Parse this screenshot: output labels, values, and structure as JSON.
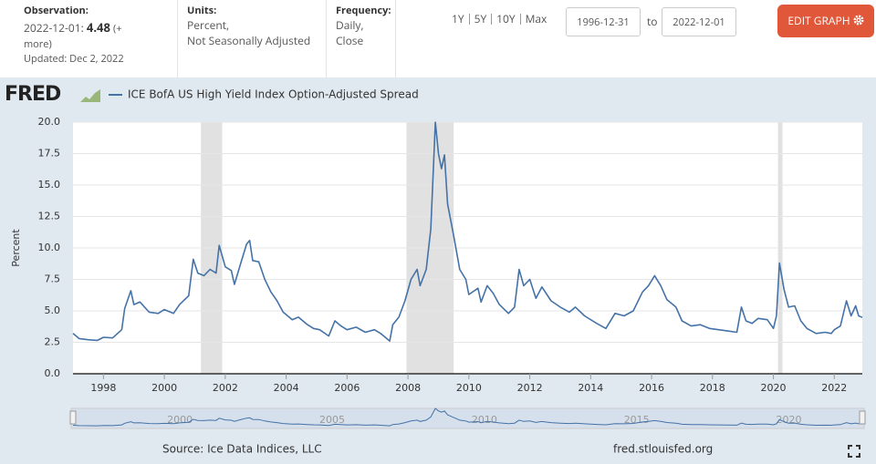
{
  "header": {
    "observation_label": "Observation:",
    "observation_date": "2022-12-01:",
    "observation_value": "4.48",
    "more": "(+ more)",
    "updated": "Updated: Dec 2, 2022",
    "units_label": "Units:",
    "units": [
      "Percent,",
      "Not Seasonally Adjusted"
    ],
    "frequency_label": "Frequency:",
    "frequency": [
      "Daily,",
      "Close"
    ],
    "ranges": [
      "1Y",
      "5Y",
      "10Y",
      "Max"
    ],
    "start_date": "1996-12-31",
    "to": "to",
    "end_date": "2022-12-01",
    "edit_button": "EDIT GRAPH"
  },
  "logo": "FRED",
  "chart_data": {
    "type": "line",
    "y_label": "Percent",
    "x": [
      1997.0,
      1997.2,
      1997.5,
      1997.8,
      1998.0,
      1998.3,
      1998.6,
      1998.7,
      1998.9,
      1999.0,
      1999.2,
      1999.5,
      1999.8,
      2000.0,
      2000.3,
      2000.5,
      2000.8,
      2000.95,
      2001.1,
      2001.3,
      2001.5,
      2001.7,
      2001.8,
      2002.0,
      2002.2,
      2002.3,
      2002.5,
      2002.7,
      2002.8,
      2002.9,
      2003.1,
      2003.3,
      2003.5,
      2003.7,
      2003.9,
      2004.2,
      2004.4,
      2004.7,
      2004.9,
      2005.1,
      2005.4,
      2005.6,
      2005.8,
      2006.0,
      2006.3,
      2006.6,
      2006.9,
      2007.1,
      2007.4,
      2007.5,
      2007.7,
      2007.9,
      2008.1,
      2008.3,
      2008.4,
      2008.6,
      2008.75,
      2008.9,
      2009.0,
      2009.1,
      2009.2,
      2009.3,
      2009.5,
      2009.7,
      2009.9,
      2010.0,
      2010.3,
      2010.4,
      2010.6,
      2010.8,
      2011.0,
      2011.3,
      2011.5,
      2011.65,
      2011.8,
      2012.0,
      2012.2,
      2012.4,
      2012.7,
      2013.0,
      2013.3,
      2013.5,
      2013.8,
      2014.2,
      2014.5,
      2014.8,
      2015.1,
      2015.4,
      2015.7,
      2015.9,
      2016.1,
      2016.3,
      2016.5,
      2016.8,
      2017.0,
      2017.3,
      2017.6,
      2017.9,
      2018.2,
      2018.5,
      2018.8,
      2018.95,
      2019.1,
      2019.3,
      2019.5,
      2019.8,
      2020.0,
      2020.1,
      2020.2,
      2020.35,
      2020.5,
      2020.7,
      2020.9,
      2021.1,
      2021.4,
      2021.7,
      2021.9,
      2022.0,
      2022.2,
      2022.4,
      2022.55,
      2022.7,
      2022.8,
      2022.92
    ],
    "series": [
      {
        "name": "ICE BofA US High Yield Index Option-Adjusted Spread",
        "color": "#4572a7",
        "values": [
          3.2,
          2.8,
          2.7,
          2.65,
          2.9,
          2.85,
          3.5,
          5.2,
          6.6,
          5.5,
          5.7,
          4.9,
          4.8,
          5.1,
          4.8,
          5.5,
          6.2,
          9.1,
          8.0,
          7.8,
          8.3,
          8.0,
          10.2,
          8.5,
          8.2,
          7.1,
          8.7,
          10.3,
          10.6,
          9.0,
          8.9,
          7.5,
          6.5,
          5.8,
          4.9,
          4.3,
          4.5,
          3.9,
          3.6,
          3.5,
          3.0,
          4.2,
          3.8,
          3.5,
          3.7,
          3.3,
          3.5,
          3.2,
          2.6,
          3.9,
          4.5,
          5.8,
          7.5,
          8.3,
          7.0,
          8.3,
          11.5,
          20.0,
          17.5,
          16.3,
          17.4,
          13.5,
          11.0,
          8.3,
          7.5,
          6.3,
          6.8,
          5.7,
          7.0,
          6.4,
          5.5,
          4.8,
          5.3,
          8.3,
          7.0,
          7.5,
          6.0,
          6.9,
          5.8,
          5.3,
          4.9,
          5.3,
          4.6,
          4.0,
          3.6,
          4.8,
          4.6,
          5.0,
          6.5,
          7.0,
          7.8,
          7.0,
          5.9,
          5.3,
          4.2,
          3.8,
          3.9,
          3.6,
          3.5,
          3.4,
          3.3,
          5.3,
          4.2,
          4.0,
          4.4,
          4.3,
          3.6,
          4.6,
          8.8,
          6.7,
          5.3,
          5.4,
          4.2,
          3.6,
          3.2,
          3.3,
          3.2,
          3.5,
          3.8,
          5.8,
          4.6,
          5.4,
          4.6,
          4.48
        ]
      }
    ],
    "xlim": [
      1997.0,
      2022.92
    ],
    "ylim": [
      0,
      20
    ],
    "xticks": [
      1998,
      2000,
      2002,
      2004,
      2006,
      2008,
      2010,
      2012,
      2014,
      2016,
      2018,
      2020,
      2022
    ],
    "yticks": [
      {
        "value": 0,
        "label": "0.0"
      },
      {
        "value": 2.5,
        "label": "2.5"
      },
      {
        "value": 5,
        "label": "5.0"
      },
      {
        "value": 7.5,
        "label": "7.5"
      },
      {
        "value": 10,
        "label": "10.0"
      },
      {
        "value": 12.5,
        "label": "12.5"
      },
      {
        "value": 15,
        "label": "15.0"
      },
      {
        "value": 17.5,
        "label": "17.5"
      },
      {
        "value": 20,
        "label": "20.0"
      }
    ],
    "grid": true,
    "recessions": [
      [
        2001.2,
        2001.9
      ],
      [
        2007.95,
        2009.5
      ],
      [
        2020.15,
        2020.3
      ]
    ],
    "navigator_ticks": [
      2000,
      2005,
      2010,
      2015,
      2020
    ]
  },
  "footer": {
    "source": "Source: Ice Data Indices, LLC",
    "url": "fred.stlouisfed.org"
  }
}
